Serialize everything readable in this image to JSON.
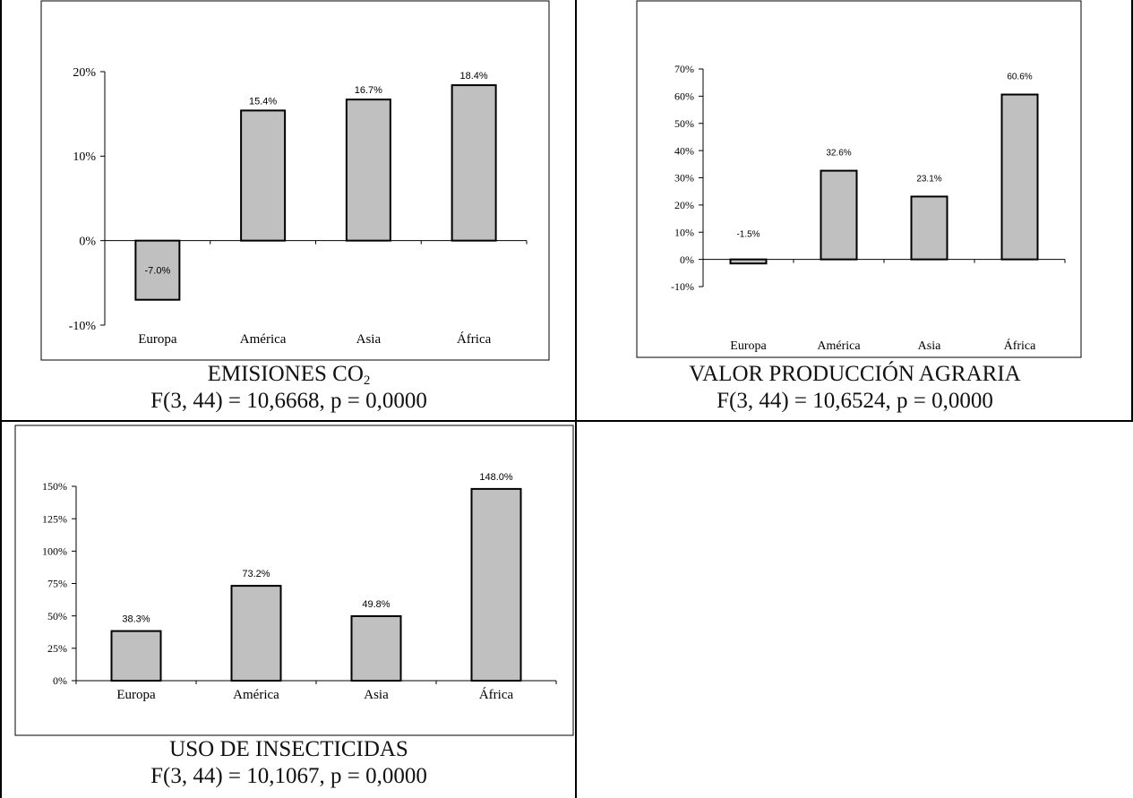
{
  "captions": [
    {
      "title": "EMISIONES CO",
      "title_sub": "2",
      "stat": "F(3, 44) = 10,6668, p = 0,0000"
    },
    {
      "title": "VALOR PRODUCCIÓN AGRARIA",
      "title_sub": "",
      "stat": "F(3, 44) = 10,6524, p = 0,0000"
    },
    {
      "title": "USO DE INSECTICIDAS",
      "title_sub": "",
      "stat": "F(3, 44) = 10,1067, p = 0,0000"
    }
  ],
  "chart_data": [
    {
      "type": "bar",
      "title": "EMISIONES CO2",
      "categories": [
        "Europa",
        "América",
        "Asia",
        "África"
      ],
      "values": [
        -7.0,
        15.4,
        16.7,
        18.4
      ],
      "value_labels": [
        "-7.0%",
        "15.4%",
        "16.7%",
        "18.4%"
      ],
      "ylim": [
        -10,
        20
      ],
      "yticks": [
        -10,
        0,
        10,
        20
      ],
      "ytick_labels": [
        "-10%",
        "0%",
        "10%",
        "20%"
      ],
      "grid": false,
      "bar_color": "#c0c0c0"
    },
    {
      "type": "bar",
      "title": "VALOR PRODUCCIÓN AGRARIA",
      "categories": [
        "Europa",
        "América",
        "Asia",
        "África"
      ],
      "values": [
        -1.5,
        32.6,
        23.1,
        60.6
      ],
      "value_labels": [
        "-1.5%",
        "32.6%",
        "23.1%",
        "60.6%"
      ],
      "ylim": [
        -10,
        70
      ],
      "yticks": [
        -10,
        0,
        10,
        20,
        30,
        40,
        50,
        60,
        70
      ],
      "ytick_labels": [
        "-10%",
        "0%",
        "10%",
        "20%",
        "30%",
        "40%",
        "50%",
        "60%",
        "70%"
      ],
      "grid": false,
      "bar_color": "#c0c0c0"
    },
    {
      "type": "bar",
      "title": "USO DE INSECTICIDAS",
      "categories": [
        "Europa",
        "América",
        "Asia",
        "África"
      ],
      "values": [
        38.3,
        73.2,
        49.8,
        148.0
      ],
      "value_labels": [
        "38.3%",
        "73.2%",
        "49.8%",
        "148.0%"
      ],
      "ylim": [
        0,
        150
      ],
      "yticks": [
        0,
        25,
        50,
        75,
        100,
        125,
        150
      ],
      "ytick_labels": [
        "0%",
        "25%",
        "50%",
        "75%",
        "100%",
        "125%",
        "150%"
      ],
      "grid": false,
      "bar_color": "#c0c0c0"
    }
  ]
}
